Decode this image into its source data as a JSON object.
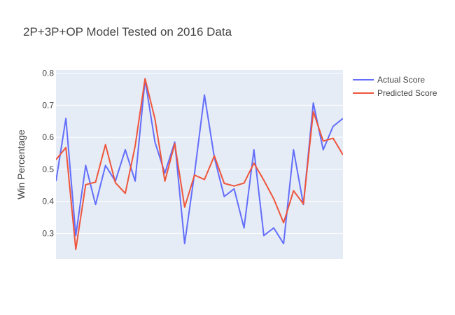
{
  "chart_data": {
    "type": "line",
    "title": "2P+3P+OP Model Tested on 2016 Data",
    "xlabel": "",
    "ylabel": "Win Percentage",
    "x": [
      0,
      1,
      2,
      3,
      4,
      5,
      6,
      7,
      8,
      9,
      10,
      11,
      12,
      13,
      14,
      15,
      16,
      17,
      18,
      19,
      20,
      21,
      22,
      23,
      24,
      25,
      26,
      27,
      28,
      29
    ],
    "xlim": [
      0,
      29
    ],
    "ylim": [
      0.22,
      0.81
    ],
    "yticks": [
      0.3,
      0.4,
      0.5,
      0.6,
      0.7,
      0.8
    ],
    "ytick_labels": [
      "0.3",
      "0.4",
      "0.5",
      "0.6",
      "0.7",
      "0.8"
    ],
    "grid": true,
    "legend_position": "top-right",
    "plot_background": "#e5ecf6",
    "series": [
      {
        "name": "Actual Score",
        "color": "#636efa",
        "values": [
          0.463,
          0.659,
          0.293,
          0.512,
          0.39,
          0.512,
          0.463,
          0.561,
          0.463,
          0.78,
          0.585,
          0.488,
          0.585,
          0.268,
          0.488,
          0.732,
          0.537,
          0.415,
          0.439,
          0.317,
          0.561,
          0.293,
          0.317,
          0.268,
          0.561,
          0.39,
          0.707,
          0.561,
          0.634,
          0.659
        ]
      },
      {
        "name": "Predicted Score",
        "color": "#ef553b",
        "values": [
          0.53,
          0.568,
          0.25,
          0.452,
          0.46,
          0.577,
          0.458,
          0.425,
          0.573,
          0.783,
          0.657,
          0.463,
          0.58,
          0.382,
          0.482,
          0.468,
          0.542,
          0.456,
          0.448,
          0.457,
          0.519,
          0.466,
          0.408,
          0.333,
          0.433,
          0.392,
          0.68,
          0.588,
          0.597,
          0.545
        ]
      }
    ]
  }
}
